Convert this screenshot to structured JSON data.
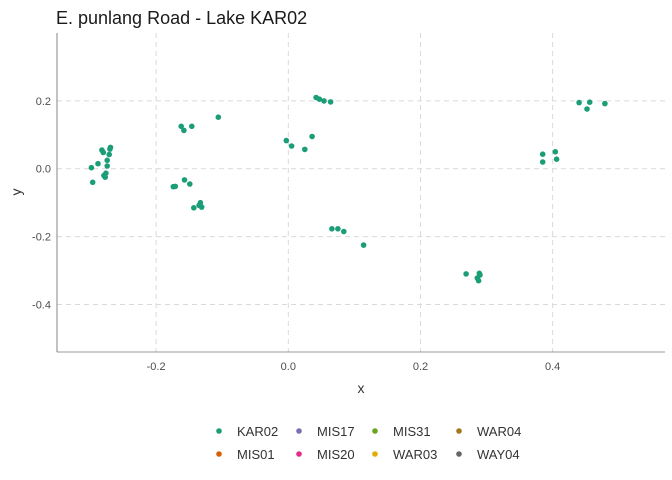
{
  "chart_data": {
    "type": "scatter",
    "title": "E. punlang Road - Lake KAR02",
    "xlabel": "x",
    "ylabel": "y",
    "xlim": [
      -0.35,
      0.57
    ],
    "ylim": [
      -0.54,
      0.4
    ],
    "x_ticks": [
      -0.2,
      0.0,
      0.2,
      0.4
    ],
    "x_tick_labels": [
      "-0.2",
      "0.0",
      "0.2",
      "0.4"
    ],
    "y_ticks": [
      0.2,
      0.0,
      -0.2,
      -0.4
    ],
    "y_tick_labels": [
      "0.2",
      "0.0",
      "-0.2",
      "-0.4"
    ],
    "grid": true,
    "legend_position": "bottom",
    "legend": [
      {
        "label": "KAR02",
        "color": "#1b9e77"
      },
      {
        "label": "MIS01",
        "color": "#d95f02"
      },
      {
        "label": "MIS17",
        "color": "#7570b3"
      },
      {
        "label": "MIS20",
        "color": "#e7298a"
      },
      {
        "label": "MIS31",
        "color": "#66a61e"
      },
      {
        "label": "WAR03",
        "color": "#e6ab02"
      },
      {
        "label": "WAR04",
        "color": "#a6761d"
      },
      {
        "label": "WAY04",
        "color": "#666666"
      }
    ],
    "series": [
      {
        "name": "KAR02",
        "color": "#1b9e77",
        "points": [
          [
            -0.298,
            0.003
          ],
          [
            -0.296,
            -0.04
          ],
          [
            -0.288,
            0.015
          ],
          [
            -0.282,
            0.055
          ],
          [
            -0.28,
            0.048
          ],
          [
            -0.279,
            -0.02
          ],
          [
            -0.277,
            -0.025
          ],
          [
            -0.276,
            -0.013
          ],
          [
            -0.274,
            0.008
          ],
          [
            -0.274,
            0.025
          ],
          [
            -0.271,
            0.042
          ],
          [
            -0.27,
            0.058
          ],
          [
            -0.269,
            0.063
          ],
          [
            -0.174,
            -0.053
          ],
          [
            -0.171,
            -0.052
          ],
          [
            -0.162,
            0.125
          ],
          [
            -0.158,
            0.113
          ],
          [
            -0.157,
            -0.033
          ],
          [
            -0.149,
            -0.045
          ],
          [
            -0.146,
            0.125
          ],
          [
            -0.143,
            -0.115
          ],
          [
            -0.135,
            -0.108
          ],
          [
            -0.131,
            -0.113
          ],
          [
            -0.133,
            -0.1
          ],
          [
            -0.106,
            0.152
          ],
          [
            -0.003,
            0.083
          ],
          [
            0.005,
            0.067
          ],
          [
            0.025,
            0.057
          ],
          [
            0.036,
            0.095
          ],
          [
            0.042,
            0.21
          ],
          [
            0.047,
            0.205
          ],
          [
            0.054,
            0.2
          ],
          [
            0.064,
            0.197
          ],
          [
            0.066,
            -0.177
          ],
          [
            0.075,
            -0.177
          ],
          [
            0.084,
            -0.185
          ],
          [
            0.114,
            -0.225
          ],
          [
            0.269,
            -0.31
          ],
          [
            0.286,
            -0.322
          ],
          [
            0.289,
            -0.308
          ],
          [
            0.29,
            -0.313
          ],
          [
            0.288,
            -0.33
          ],
          [
            0.385,
            0.043
          ],
          [
            0.385,
            0.02
          ],
          [
            0.404,
            0.05
          ],
          [
            0.406,
            0.028
          ],
          [
            0.44,
            0.195
          ],
          [
            0.452,
            0.176
          ],
          [
            0.456,
            0.196
          ],
          [
            0.479,
            0.192
          ]
        ]
      }
    ]
  }
}
